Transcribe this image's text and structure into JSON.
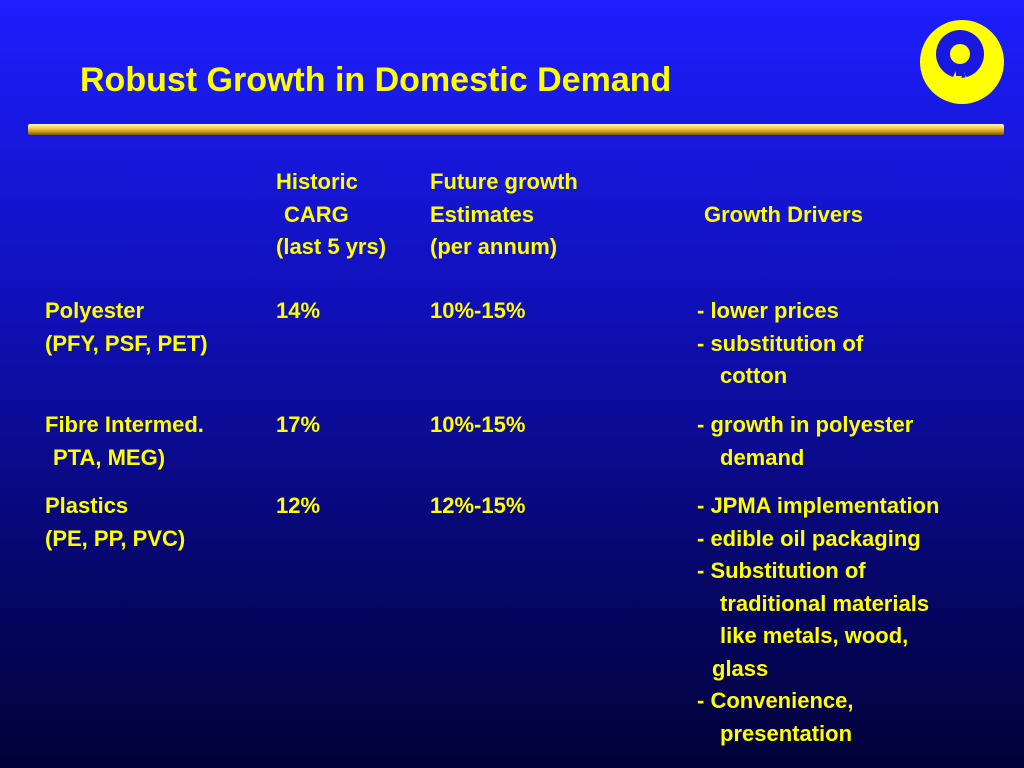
{
  "slide": {
    "title": "Robust Growth in Domestic Demand",
    "logo_icon": "reliance-logo-icon",
    "colors": {
      "background": "#1010b8",
      "text": "#ffff00",
      "rule": "#d4a72c"
    }
  },
  "table": {
    "headers": {
      "historic": [
        "Historic",
        "CARG",
        "(last 5 yrs)"
      ],
      "future": [
        "Future growth",
        "Estimates",
        "(per annum)"
      ],
      "drivers": "Growth Drivers"
    },
    "rows": [
      {
        "product": [
          "Polyester",
          "(PFY, PSF, PET)"
        ],
        "historic": "14%",
        "future": "10%-15%",
        "drivers": [
          "- lower prices",
          "- substitution of",
          "cotton"
        ]
      },
      {
        "product": [
          "Fibre Intermed.",
          "PTA, MEG)"
        ],
        "historic": "17%",
        "future": "10%-15%",
        "drivers": [
          "- growth in polyester",
          "demand"
        ]
      },
      {
        "product": [
          "Plastics",
          "(PE, PP, PVC)"
        ],
        "historic": "12%",
        "future": "12%-15%",
        "drivers": [
          "- JPMA implementation",
          "- edible oil packaging",
          "- Substitution of",
          "traditional materials",
          "like metals, wood,",
          "glass",
          "- Convenience,",
          "presentation"
        ]
      }
    ]
  }
}
